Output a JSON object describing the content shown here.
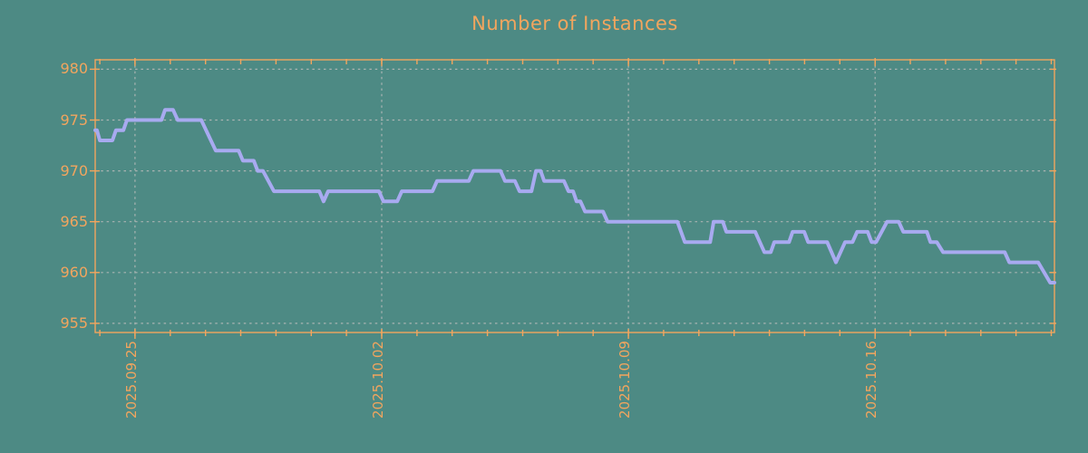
{
  "colors": {
    "background": "#4d8a84",
    "accent": "#f2a55e",
    "grid": "#a9b4b2",
    "line": "#a8aaf0"
  },
  "chart_data": {
    "type": "line",
    "title": "Number of Instances",
    "xlabel": "",
    "ylabel": "",
    "legend": "none",
    "grid": "dashed, at major ticks only",
    "ylim": [
      954.1,
      980.93
    ],
    "y_ticks": [
      955,
      960,
      965,
      970,
      975,
      980
    ],
    "y_tick_labels": [
      "955",
      "960",
      "965",
      "970",
      "975",
      "980"
    ],
    "xlim_days": [
      0,
      27.22
    ],
    "x_tick_labels": [
      "2025.09.25",
      "2025.10.02",
      "2025.10.09",
      "2025.10.16"
    ],
    "x_major_days": [
      1.13,
      8.13,
      15.13,
      22.13
    ],
    "x_minor_first_day": 0.13,
    "x_minor_step_days": 1,
    "x_minor_count": 28,
    "series": [
      {
        "name": "instances",
        "points": [
          [
            0,
            974
          ],
          [
            0.05,
            974
          ],
          [
            0.13,
            973
          ],
          [
            0.49,
            973
          ],
          [
            0.59,
            974
          ],
          [
            0.8,
            974
          ],
          [
            0.9,
            975
          ],
          [
            1.88,
            975
          ],
          [
            1.98,
            976
          ],
          [
            2.21,
            976
          ],
          [
            2.34,
            975
          ],
          [
            3.01,
            975
          ],
          [
            3.42,
            972
          ],
          [
            4.07,
            972
          ],
          [
            4.19,
            971
          ],
          [
            4.5,
            971
          ],
          [
            4.61,
            970
          ],
          [
            4.76,
            970
          ],
          [
            5.07,
            968
          ],
          [
            6.36,
            968
          ],
          [
            6.48,
            967
          ],
          [
            6.61,
            968
          ],
          [
            8.05,
            968
          ],
          [
            8.18,
            967
          ],
          [
            8.57,
            967
          ],
          [
            8.7,
            968
          ],
          [
            9.57,
            968
          ],
          [
            9.7,
            969
          ],
          [
            10.6,
            969
          ],
          [
            10.73,
            970
          ],
          [
            11.5,
            970
          ],
          [
            11.63,
            969
          ],
          [
            11.91,
            969
          ],
          [
            12.04,
            968
          ],
          [
            12.38,
            968
          ],
          [
            12.51,
            970
          ],
          [
            12.64,
            970
          ],
          [
            12.74,
            969
          ],
          [
            13.3,
            969
          ],
          [
            13.43,
            968
          ],
          [
            13.56,
            968
          ],
          [
            13.66,
            967
          ],
          [
            13.77,
            967
          ],
          [
            13.9,
            966
          ],
          [
            14.41,
            966
          ],
          [
            14.54,
            965
          ],
          [
            16.52,
            965
          ],
          [
            16.73,
            963
          ],
          [
            17.45,
            963
          ],
          [
            17.55,
            965
          ],
          [
            17.81,
            965
          ],
          [
            17.91,
            964
          ],
          [
            18.73,
            964
          ],
          [
            18.99,
            962
          ],
          [
            19.17,
            962
          ],
          [
            19.27,
            963
          ],
          [
            19.69,
            963
          ],
          [
            19.79,
            964
          ],
          [
            20.12,
            964
          ],
          [
            20.23,
            963
          ],
          [
            20.77,
            963
          ],
          [
            21.02,
            961
          ],
          [
            21.28,
            963
          ],
          [
            21.49,
            963
          ],
          [
            21.62,
            964
          ],
          [
            21.92,
            964
          ],
          [
            22.03,
            963
          ],
          [
            22.16,
            963
          ],
          [
            22.47,
            965
          ],
          [
            22.8,
            965
          ],
          [
            22.93,
            964
          ],
          [
            23.6,
            964
          ],
          [
            23.7,
            963
          ],
          [
            23.88,
            963
          ],
          [
            24.06,
            962
          ],
          [
            25.81,
            962
          ],
          [
            25.94,
            961
          ],
          [
            26.76,
            961
          ],
          [
            27.1,
            959
          ],
          [
            27.22,
            959
          ]
        ]
      }
    ]
  }
}
